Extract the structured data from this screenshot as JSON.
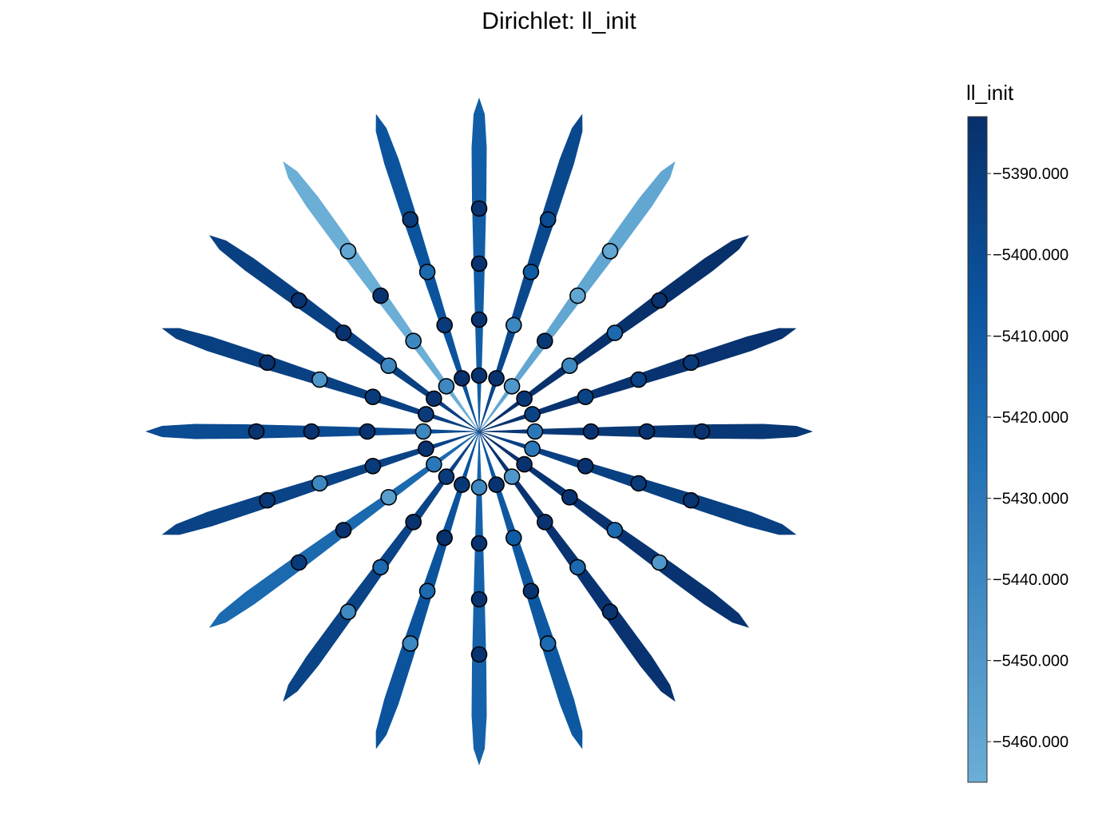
{
  "chart_data": {
    "type": "other",
    "title": "Dirichlet: ll_init",
    "description_kind": "radial star plot of Dirichlet parameter samples, 20 spokes with 4 markers each, colored by ll_init",
    "colorbar": {
      "title": "ll_init",
      "min": -5465,
      "max": -5383,
      "ticks": [
        -5390.0,
        -5400.0,
        -5410.0,
        -5420.0,
        -5430.0,
        -5440.0,
        -5450.0,
        -5460.0
      ],
      "tick_labels": [
        "−5390.000",
        "−5400.000",
        "−5410.000",
        "−5420.000",
        "−5430.000",
        "−5440.000",
        "−5450.000",
        "−5460.000"
      ],
      "color_low": "#6baed6",
      "color_mid": "#0b559f",
      "color_high": "#08306b"
    },
    "spokes": [
      {
        "angle_deg": 0,
        "ll": -5388,
        "points": [
          -5430,
          -5385,
          -5385,
          -5385
        ]
      },
      {
        "angle_deg": 18,
        "ll": -5385,
        "points": [
          -5395,
          -5395,
          -5395,
          -5390
        ]
      },
      {
        "angle_deg": 36,
        "ll": -5383,
        "points": [
          -5387,
          -5440,
          -5420,
          -5385
        ]
      },
      {
        "angle_deg": 54,
        "ll": -5460,
        "points": [
          -5450,
          -5388,
          -5460,
          -5460
        ]
      },
      {
        "angle_deg": 72,
        "ll": -5398,
        "points": [
          -5385,
          -5440,
          -5410,
          -5400
        ]
      },
      {
        "angle_deg": 90,
        "ll": -5412,
        "points": [
          -5385,
          -5385,
          -5385,
          -5385
        ]
      },
      {
        "angle_deg": 108,
        "ll": -5405,
        "points": [
          -5383,
          -5390,
          -5420,
          -5390
        ]
      },
      {
        "angle_deg": 126,
        "ll": -5465,
        "points": [
          -5440,
          -5440,
          -5385,
          -5460
        ]
      },
      {
        "angle_deg": 144,
        "ll": -5393,
        "points": [
          -5385,
          -5440,
          -5385,
          -5385
        ]
      },
      {
        "angle_deg": 162,
        "ll": -5393,
        "points": [
          -5390,
          -5390,
          -5450,
          -5385
        ]
      },
      {
        "angle_deg": 180,
        "ll": -5400,
        "points": [
          -5440,
          -5385,
          -5385,
          -5385
        ]
      },
      {
        "angle_deg": 198,
        "ll": -5395,
        "points": [
          -5385,
          -5390,
          -5440,
          -5388
        ]
      },
      {
        "angle_deg": 216,
        "ll": -5420,
        "points": [
          -5430,
          -5455,
          -5385,
          -5390
        ]
      },
      {
        "angle_deg": 234,
        "ll": -5395,
        "points": [
          -5390,
          -5385,
          -5420,
          -5440
        ]
      },
      {
        "angle_deg": 252,
        "ll": -5405,
        "points": [
          -5388,
          -5383,
          -5420,
          -5440
        ]
      },
      {
        "angle_deg": 270,
        "ll": -5415,
        "points": [
          -5440,
          -5385,
          -5385,
          -5385
        ]
      },
      {
        "angle_deg": 288,
        "ll": -5408,
        "points": [
          -5385,
          -5410,
          -5385,
          -5420
        ]
      },
      {
        "angle_deg": 306,
        "ll": -5385,
        "points": [
          -5450,
          -5385,
          -5420,
          -5385
        ]
      },
      {
        "angle_deg": 324,
        "ll": -5385,
        "points": [
          -5385,
          -5385,
          -5420,
          -5450
        ]
      },
      {
        "angle_deg": 342,
        "ll": -5393,
        "points": [
          -5430,
          -5385,
          -5390,
          -5385
        ]
      }
    ]
  }
}
